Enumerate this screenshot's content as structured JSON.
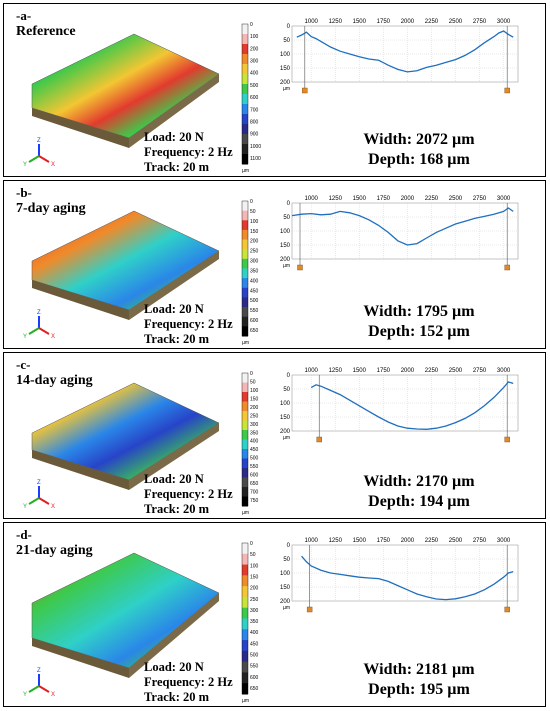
{
  "figure": {
    "panels": [
      {
        "tag": "-a-",
        "title": "Reference",
        "load": "Load: 20 N",
        "frequency": "Frequency: 2 Hz",
        "track": "Track: 20 m",
        "width": "Width: 2072 µm",
        "depth": "Depth: 168 µm",
        "colorbar_ticks": [
          "0",
          "100",
          "200",
          "300",
          "400",
          "500",
          "600",
          "700",
          "800",
          "900",
          "1000",
          "1100"
        ],
        "colorbar_unit": "µm",
        "profile_x_ticks": [
          "1000",
          "1250",
          "1500",
          "1750",
          "2000",
          "2250",
          "2500",
          "2750",
          "3000"
        ],
        "profile_y_ticks": [
          "0",
          "50",
          "100",
          "150",
          "200"
        ],
        "profile_y_unit": "µm",
        "profile_data": [
          [
            850,
            40
          ],
          [
            900,
            32
          ],
          [
            950,
            22
          ],
          [
            1000,
            38
          ],
          [
            1050,
            45
          ],
          [
            1100,
            55
          ],
          [
            1200,
            75
          ],
          [
            1300,
            90
          ],
          [
            1400,
            100
          ],
          [
            1500,
            110
          ],
          [
            1600,
            118
          ],
          [
            1700,
            122
          ],
          [
            1800,
            140
          ],
          [
            1900,
            155
          ],
          [
            2000,
            164
          ],
          [
            2100,
            160
          ],
          [
            2200,
            148
          ],
          [
            2300,
            140
          ],
          [
            2400,
            130
          ],
          [
            2500,
            120
          ],
          [
            2600,
            105
          ],
          [
            2700,
            85
          ],
          [
            2800,
            60
          ],
          [
            2900,
            38
          ],
          [
            2950,
            25
          ],
          [
            3000,
            18
          ],
          [
            3050,
            30
          ],
          [
            3100,
            40
          ]
        ]
      },
      {
        "tag": "-b-",
        "title": "7-day aging",
        "load": "Load: 20 N",
        "frequency": "Frequency: 2 Hz",
        "track": "Track: 20 m",
        "width": "Width: 1795 µm",
        "depth": "Depth: 152 µm",
        "colorbar_ticks": [
          "0",
          "50",
          "100",
          "150",
          "200",
          "250",
          "300",
          "350",
          "400",
          "450",
          "500",
          "550",
          "600",
          "650"
        ],
        "colorbar_unit": "µm",
        "profile_x_ticks": [
          "1000",
          "1250",
          "1500",
          "1750",
          "2000",
          "2250",
          "2500",
          "2750",
          "3000"
        ],
        "profile_y_ticks": [
          "0",
          "50",
          "100",
          "150",
          "200"
        ],
        "profile_y_unit": "µm",
        "profile_data": [
          [
            800,
            45
          ],
          [
            900,
            40
          ],
          [
            1000,
            38
          ],
          [
            1100,
            42
          ],
          [
            1200,
            40
          ],
          [
            1300,
            30
          ],
          [
            1400,
            35
          ],
          [
            1500,
            45
          ],
          [
            1600,
            60
          ],
          [
            1700,
            80
          ],
          [
            1800,
            105
          ],
          [
            1900,
            135
          ],
          [
            2000,
            150
          ],
          [
            2100,
            145
          ],
          [
            2200,
            125
          ],
          [
            2300,
            105
          ],
          [
            2400,
            90
          ],
          [
            2500,
            75
          ],
          [
            2600,
            65
          ],
          [
            2700,
            55
          ],
          [
            2800,
            48
          ],
          [
            2900,
            40
          ],
          [
            3000,
            30
          ],
          [
            3050,
            18
          ],
          [
            3100,
            30
          ]
        ]
      },
      {
        "tag": "-c-",
        "title": "14-day aging",
        "load": "Load: 20 N",
        "frequency": "Frequency: 2 Hz",
        "track": "Track: 20 m",
        "width": "Width: 2170 µm",
        "depth": "Depth: 194 µm",
        "colorbar_ticks": [
          "0",
          "50",
          "100",
          "150",
          "200",
          "250",
          "300",
          "350",
          "400",
          "450",
          "500",
          "550",
          "600",
          "650",
          "700",
          "750"
        ],
        "colorbar_unit": "µm",
        "profile_x_ticks": [
          "1000",
          "1250",
          "1500",
          "1750",
          "2000",
          "2250",
          "2500",
          "2750",
          "3000"
        ],
        "profile_y_ticks": [
          "0",
          "50",
          "100",
          "150",
          "200"
        ],
        "profile_y_unit": "µm",
        "profile_data": [
          [
            1000,
            45
          ],
          [
            1050,
            35
          ],
          [
            1100,
            40
          ],
          [
            1200,
            55
          ],
          [
            1300,
            70
          ],
          [
            1400,
            90
          ],
          [
            1500,
            110
          ],
          [
            1600,
            130
          ],
          [
            1700,
            150
          ],
          [
            1800,
            168
          ],
          [
            1900,
            182
          ],
          [
            2000,
            190
          ],
          [
            2100,
            193
          ],
          [
            2200,
            194
          ],
          [
            2300,
            190
          ],
          [
            2400,
            182
          ],
          [
            2500,
            170
          ],
          [
            2600,
            155
          ],
          [
            2700,
            135
          ],
          [
            2800,
            110
          ],
          [
            2900,
            80
          ],
          [
            3000,
            45
          ],
          [
            3050,
            25
          ],
          [
            3100,
            30
          ]
        ]
      },
      {
        "tag": "-d-",
        "title": "21-day aging",
        "load": "Load: 20 N",
        "frequency": "Frequency: 2 Hz",
        "track": "Track: 20 m",
        "width": "Width: 2181 µm",
        "depth": "Depth: 195 µm",
        "colorbar_ticks": [
          "0",
          "50",
          "100",
          "150",
          "200",
          "250",
          "300",
          "350",
          "400",
          "450",
          "500",
          "550",
          "600",
          "650"
        ],
        "colorbar_unit": "µm",
        "profile_x_ticks": [
          "1000",
          "1250",
          "1500",
          "1750",
          "2000",
          "2250",
          "2500",
          "2750",
          "3000"
        ],
        "profile_y_ticks": [
          "0",
          "50",
          "100",
          "150",
          "200"
        ],
        "profile_y_unit": "µm",
        "profile_data": [
          [
            900,
            40
          ],
          [
            950,
            60
          ],
          [
            1000,
            75
          ],
          [
            1100,
            90
          ],
          [
            1200,
            100
          ],
          [
            1300,
            105
          ],
          [
            1400,
            110
          ],
          [
            1500,
            115
          ],
          [
            1600,
            118
          ],
          [
            1700,
            120
          ],
          [
            1800,
            130
          ],
          [
            1900,
            145
          ],
          [
            2000,
            160
          ],
          [
            2100,
            175
          ],
          [
            2200,
            185
          ],
          [
            2300,
            193
          ],
          [
            2400,
            195
          ],
          [
            2500,
            192
          ],
          [
            2600,
            185
          ],
          [
            2700,
            175
          ],
          [
            2800,
            160
          ],
          [
            2900,
            140
          ],
          [
            3000,
            115
          ],
          [
            3050,
            100
          ],
          [
            3100,
            95
          ]
        ]
      }
    ]
  }
}
